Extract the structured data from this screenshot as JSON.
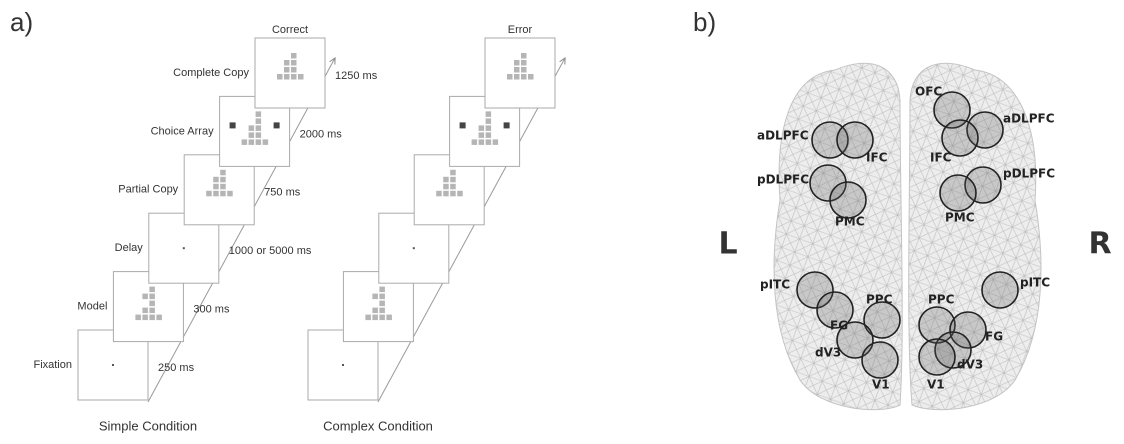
{
  "panel_a": {
    "label": "a)",
    "columns": [
      "Correct",
      "Error"
    ],
    "stages": [
      {
        "name": "Fixation",
        "duration": "250 ms"
      },
      {
        "name": "Model",
        "duration": "300 ms"
      },
      {
        "name": "Delay",
        "duration": "1000 or 5000 ms"
      },
      {
        "name": "Partial Copy",
        "duration": "750 ms"
      },
      {
        "name": "Choice Array",
        "duration": "2000 ms"
      },
      {
        "name": "Complete Copy",
        "duration": "1250 ms"
      }
    ],
    "conditions": [
      "Simple Condition",
      "Complex Condition"
    ]
  },
  "panel_b": {
    "label": "b)",
    "hemispheres": [
      "L",
      "R"
    ],
    "left_regions": [
      "aDLPFC",
      "IFC",
      "pDLPFC",
      "PMC",
      "pITC",
      "PPC",
      "FG",
      "dV3",
      "V1"
    ],
    "right_regions": [
      "OFC",
      "aDLPFC",
      "IFC",
      "pDLPFC",
      "PMC",
      "pITC",
      "PPC",
      "FG",
      "dV3",
      "V1"
    ]
  }
}
